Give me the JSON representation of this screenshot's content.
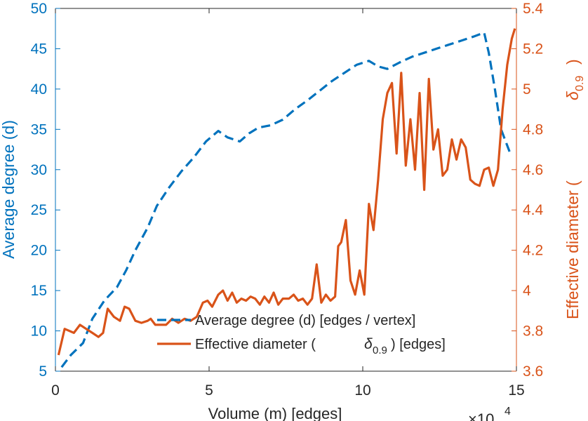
{
  "chart_data": {
    "type": "line",
    "xlabel": "Volume (m) [edges]",
    "x_exponent_label": "×10",
    "x_exponent_power": "4",
    "ylabel_left": "Average degree (d)",
    "ylabel_right_prefix": "Effective diameter (",
    "ylabel_right_symbol": "δ",
    "ylabel_right_sub": "0.9",
    "ylabel_right_suffix": ")",
    "xlim": [
      0,
      15
    ],
    "ylim_left": [
      5,
      50
    ],
    "ylim_right": [
      3.6,
      5.4
    ],
    "x_ticks": [
      0,
      5,
      10,
      15
    ],
    "y_left_ticks": [
      5,
      10,
      15,
      20,
      25,
      30,
      35,
      40,
      45,
      50
    ],
    "y_right_ticks": [
      3.6,
      3.8,
      4.0,
      4.2,
      4.4,
      4.6,
      4.8,
      5.0,
      5.2,
      5.4
    ],
    "y_right_tick_labels": [
      "3.6",
      "3.8",
      "4",
      "4.2",
      "4.4",
      "4.6",
      "4.8",
      "5",
      "5.2",
      "5.4"
    ],
    "legend": {
      "placement": "bottom-center",
      "entry1": "Average degree (d) [edges / vertex]",
      "entry2_prefix": "Effective diameter (",
      "entry2_symbol": "δ",
      "entry2_sub": "0.9",
      "entry2_suffix": ") [edges]"
    },
    "series": [
      {
        "name": "Average degree (d) [edges / vertex]",
        "axis": "left",
        "style": "dashed",
        "color": "#0072BD",
        "x": [
          0.2,
          0.5,
          0.9,
          1.2,
          1.6,
          2.0,
          2.3,
          2.6,
          3.0,
          3.3,
          3.7,
          4.1,
          4.5,
          4.9,
          5.3,
          5.6,
          6.0,
          6.3,
          6.6,
          7.0,
          7.4,
          7.8,
          8.2,
          8.6,
          9.0,
          9.4,
          9.8,
          10.2,
          10.5,
          10.8,
          11.2,
          11.6,
          12.0,
          12.4,
          12.8,
          13.2,
          13.6,
          13.95,
          14.1,
          14.3,
          14.5,
          14.8
        ],
        "values": [
          5.5,
          7.0,
          8.5,
          11.5,
          13.8,
          15.4,
          17.5,
          20.0,
          22.8,
          25.5,
          27.8,
          29.8,
          31.5,
          33.5,
          34.8,
          34.0,
          33.5,
          34.5,
          35.2,
          35.5,
          36.2,
          37.5,
          38.6,
          39.8,
          41.0,
          42.0,
          43.0,
          43.5,
          42.8,
          42.5,
          43.3,
          44.0,
          44.5,
          45.0,
          45.5,
          46.0,
          46.5,
          47.0,
          44.5,
          40.0,
          35.0,
          32.0
        ]
      },
      {
        "name": "Effective diameter (δ0.9) [edges]",
        "axis": "right",
        "style": "solid",
        "color": "#D95319",
        "x": [
          0.1,
          0.3,
          0.6,
          0.8,
          1.0,
          1.2,
          1.4,
          1.55,
          1.7,
          1.9,
          2.1,
          2.25,
          2.4,
          2.6,
          2.8,
          3.0,
          3.1,
          3.25,
          3.4,
          3.6,
          3.8,
          4.0,
          4.2,
          4.4,
          4.6,
          4.8,
          4.95,
          5.1,
          5.3,
          5.45,
          5.6,
          5.75,
          5.9,
          6.05,
          6.2,
          6.35,
          6.5,
          6.65,
          6.8,
          6.95,
          7.1,
          7.25,
          7.4,
          7.6,
          7.75,
          7.9,
          8.05,
          8.2,
          8.35,
          8.5,
          8.65,
          8.8,
          8.95,
          9.1,
          9.2,
          9.3,
          9.45,
          9.6,
          9.75,
          9.9,
          10.05,
          10.2,
          10.35,
          10.5,
          10.65,
          10.8,
          10.95,
          11.1,
          11.25,
          11.4,
          11.55,
          11.7,
          11.85,
          12.0,
          12.15,
          12.3,
          12.45,
          12.6,
          12.75,
          12.9,
          13.05,
          13.2,
          13.35,
          13.5,
          13.65,
          13.8,
          13.95,
          14.1,
          14.25,
          14.4,
          14.55,
          14.7,
          14.85,
          14.95
        ],
        "values": [
          3.68,
          3.81,
          3.79,
          3.83,
          3.81,
          3.79,
          3.77,
          3.79,
          3.91,
          3.87,
          3.85,
          3.92,
          3.91,
          3.85,
          3.84,
          3.85,
          3.86,
          3.83,
          3.83,
          3.83,
          3.86,
          3.84,
          3.86,
          3.85,
          3.87,
          3.94,
          3.95,
          3.92,
          3.98,
          4.0,
          3.95,
          3.99,
          3.94,
          3.96,
          3.95,
          3.97,
          3.96,
          3.93,
          3.97,
          3.94,
          3.99,
          3.93,
          3.96,
          3.96,
          3.98,
          3.95,
          3.96,
          3.93,
          3.96,
          4.13,
          3.94,
          3.98,
          3.95,
          3.97,
          4.22,
          4.24,
          4.35,
          4.05,
          3.98,
          4.1,
          3.98,
          4.43,
          4.3,
          4.55,
          4.85,
          4.98,
          5.03,
          4.68,
          5.08,
          4.62,
          4.85,
          4.6,
          4.98,
          4.5,
          5.05,
          4.7,
          4.8,
          4.57,
          4.6,
          4.75,
          4.65,
          4.75,
          4.71,
          4.55,
          4.53,
          4.52,
          4.6,
          4.61,
          4.52,
          4.6,
          4.9,
          5.12,
          5.25,
          5.3
        ]
      }
    ],
    "colors": {
      "left_axis": "#0072BD",
      "right_axis": "#D95319",
      "legend_text": "#262626",
      "xlabel_text": "#262626"
    }
  }
}
